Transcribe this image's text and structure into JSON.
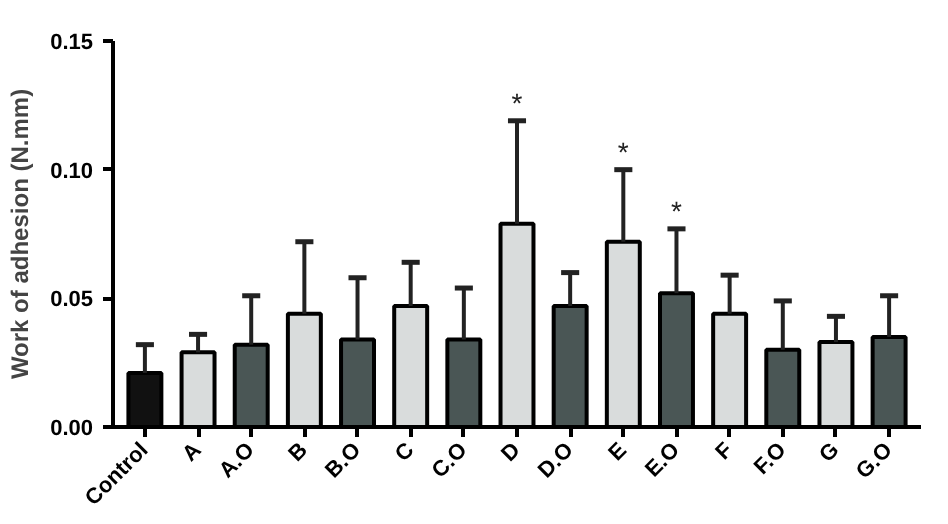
{
  "chart_data": {
    "type": "bar",
    "ylabel": "Work of adhesion (N.mm)",
    "categories": [
      "Control",
      "A",
      "A.O",
      "B",
      "B.O",
      "C",
      "C.O",
      "D",
      "D.O",
      "E",
      "E.O",
      "F",
      "F.O",
      "G",
      "G.O"
    ],
    "values": [
      0.021,
      0.029,
      0.032,
      0.044,
      0.034,
      0.047,
      0.034,
      0.079,
      0.047,
      0.072,
      0.052,
      0.044,
      0.03,
      0.033,
      0.035
    ],
    "colors": [
      "#111111",
      "#d9dcdc",
      "#4a5655",
      "#d9dcdc",
      "#4a5655",
      "#d9dcdc",
      "#4a5655",
      "#d9dcdc",
      "#4a5655",
      "#d9dcdc",
      "#4a5655",
      "#d9dcdc",
      "#4a5655",
      "#d9dcdc",
      "#4a5655"
    ],
    "errors": [
      [
        0.021,
        0.032
      ],
      [
        0.029,
        0.036
      ],
      [
        0.032,
        0.051
      ],
      [
        0.044,
        0.072
      ],
      [
        0.034,
        0.058
      ],
      [
        0.047,
        0.064
      ],
      [
        0.034,
        0.054
      ],
      [
        0.079,
        0.119
      ],
      [
        0.047,
        0.06
      ],
      [
        0.072,
        0.1
      ],
      [
        0.052,
        0.077
      ],
      [
        0.044,
        0.059
      ],
      [
        0.03,
        0.049
      ],
      [
        0.033,
        0.043
      ],
      [
        0.035,
        0.051
      ]
    ],
    "annotations": [
      {
        "text": "*",
        "x": "D",
        "y": 0.119
      },
      {
        "text": "*",
        "x": "E",
        "y": 0.1
      },
      {
        "text": "*",
        "x": "E.O",
        "y": 0.077
      }
    ],
    "ylim": [
      0,
      0.15
    ],
    "yticks": [
      {
        "value": 0,
        "label": "0.00"
      },
      {
        "value": 0.05,
        "label": "0.05"
      },
      {
        "value": 0.1,
        "label": "0.10"
      },
      {
        "value": 0.15,
        "label": "0.15"
      }
    ],
    "grid": false
  }
}
